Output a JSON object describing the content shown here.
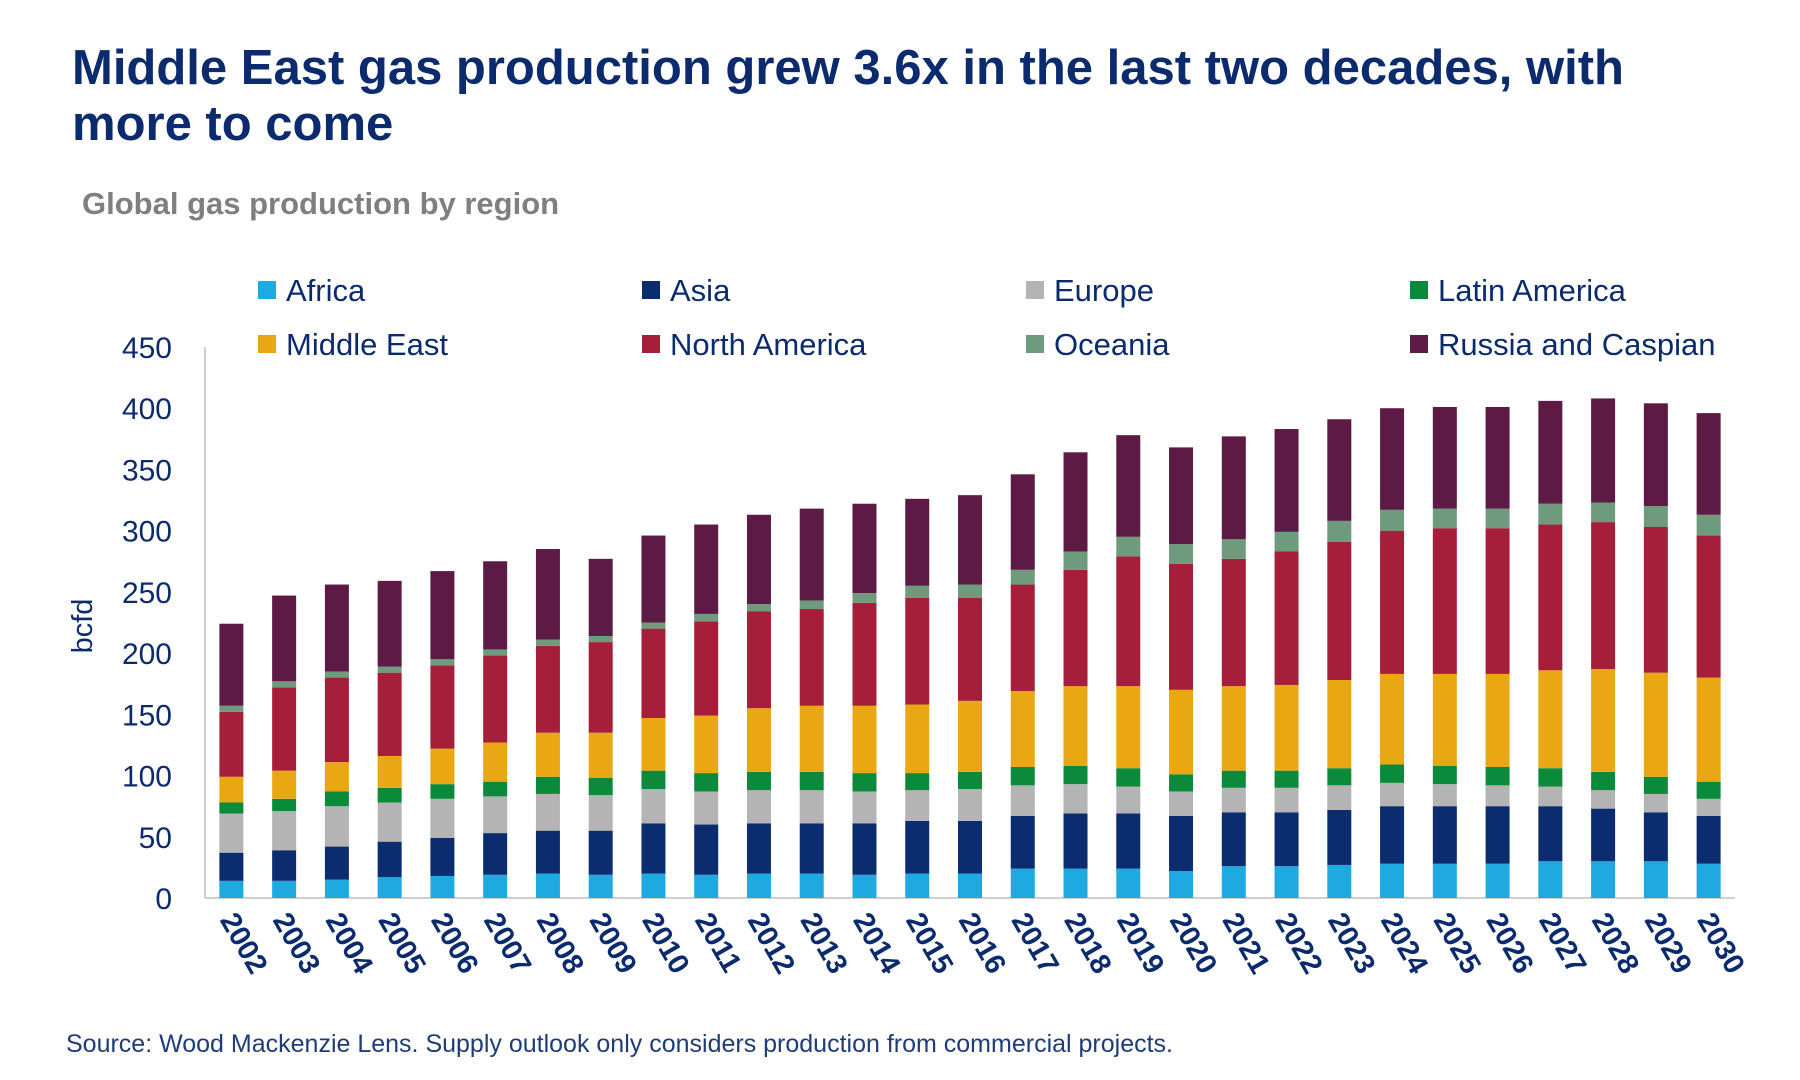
{
  "title": "Middle East gas production grew 3.6x in the last two decades, with more to come",
  "subtitle": "Global gas production by region",
  "source": "Source: Wood Mackenzie Lens. Supply outlook only considers production from commercial projects.",
  "chart_data": {
    "type": "bar",
    "stacked": true,
    "ylabel": "bcfd",
    "ylim": [
      0,
      450
    ],
    "yticks": [
      0,
      50,
      100,
      150,
      200,
      250,
      300,
      350,
      400,
      450
    ],
    "grid": false,
    "legend_position": "top",
    "categories": [
      "2002",
      "2003",
      "2004",
      "2005",
      "2006",
      "2007",
      "2008",
      "2009",
      "2010",
      "2011",
      "2012",
      "2013",
      "2014",
      "2015",
      "2016",
      "2017",
      "2018",
      "2019",
      "2020",
      "2021",
      "2022",
      "2023",
      "2024",
      "2025",
      "2026",
      "2027",
      "2028",
      "2029",
      "2030"
    ],
    "series": [
      {
        "name": "Africa",
        "color": "#1ea9e1",
        "values": [
          14,
          14,
          15,
          17,
          18,
          19,
          20,
          19,
          20,
          19,
          20,
          20,
          19,
          20,
          20,
          24,
          24,
          24,
          22,
          26,
          26,
          27,
          28,
          28,
          28,
          30,
          30,
          30,
          28
        ]
      },
      {
        "name": "Asia",
        "color": "#0b2d6f",
        "values": [
          23,
          25,
          27,
          29,
          31,
          34,
          35,
          36,
          41,
          41,
          41,
          41,
          42,
          43,
          43,
          43,
          45,
          45,
          45,
          44,
          44,
          45,
          47,
          47,
          47,
          45,
          43,
          40,
          39
        ]
      },
      {
        "name": "Europe",
        "color": "#b4b4b4",
        "values": [
          32,
          32,
          33,
          32,
          32,
          30,
          30,
          29,
          28,
          27,
          27,
          27,
          26,
          25,
          26,
          25,
          24,
          22,
          20,
          20,
          20,
          20,
          19,
          18,
          17,
          16,
          15,
          15,
          14
        ]
      },
      {
        "name": "Latin America",
        "color": "#0c8a3c",
        "values": [
          9,
          10,
          12,
          12,
          12,
          12,
          14,
          14,
          15,
          15,
          15,
          15,
          15,
          14,
          14,
          15,
          15,
          15,
          14,
          14,
          14,
          14,
          15,
          15,
          15,
          15,
          15,
          14,
          14
        ]
      },
      {
        "name": "Middle East",
        "color": "#e9a714",
        "values": [
          21,
          23,
          24,
          26,
          29,
          32,
          36,
          37,
          43,
          47,
          52,
          54,
          55,
          56,
          58,
          62,
          65,
          67,
          69,
          69,
          70,
          72,
          74,
          75,
          76,
          80,
          84,
          85,
          85
        ]
      },
      {
        "name": "North America",
        "color": "#a51f3a",
        "values": [
          53,
          68,
          69,
          68,
          68,
          71,
          71,
          74,
          73,
          77,
          79,
          79,
          84,
          87,
          84,
          87,
          95,
          106,
          103,
          104,
          109,
          113,
          117,
          119,
          119,
          119,
          120,
          119,
          116
        ]
      },
      {
        "name": "Oceania",
        "color": "#6e9a7d",
        "values": [
          5,
          5,
          5,
          5,
          5,
          5,
          5,
          5,
          5,
          6,
          6,
          7,
          8,
          10,
          11,
          12,
          15,
          16,
          16,
          16,
          16,
          17,
          17,
          16,
          16,
          17,
          16,
          17,
          17
        ]
      },
      {
        "name": "Russia and Caspian",
        "color": "#5c1a45",
        "values": [
          67,
          70,
          71,
          70,
          72,
          72,
          74,
          63,
          71,
          73,
          73,
          75,
          73,
          71,
          73,
          78,
          81,
          83,
          79,
          84,
          84,
          83,
          83,
          83,
          83,
          84,
          85,
          84,
          83
        ]
      }
    ]
  }
}
